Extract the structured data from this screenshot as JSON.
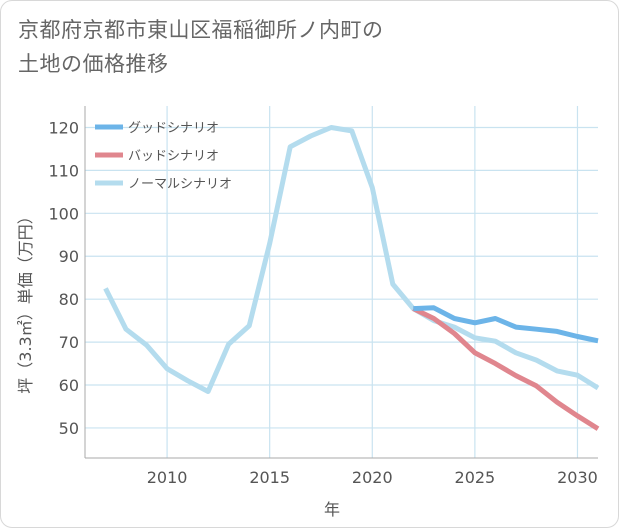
{
  "chart_data": {
    "type": "line",
    "title_lines": [
      "京都府京都市東山区福稲御所ノ内町の",
      "土地の価格推移"
    ],
    "xlabel": "年",
    "ylabel": "坪（3.3㎡）単価（万円）",
    "xlim": [
      2006,
      2031
    ],
    "ylim": [
      43,
      125
    ],
    "xticks": [
      2010,
      2015,
      2020,
      2025,
      2030
    ],
    "yticks": [
      50,
      60,
      70,
      80,
      90,
      100,
      110,
      120
    ],
    "grid": true,
    "legend_position": "top-left",
    "series": [
      {
        "name": "グッドシナリオ",
        "color": "#6cb4e8",
        "points": [
          [
            2022,
            77.8
          ],
          [
            2023,
            78
          ],
          [
            2024,
            75.5
          ],
          [
            2025,
            74.5
          ],
          [
            2026,
            75.5
          ],
          [
            2027,
            73.5
          ],
          [
            2028,
            73
          ],
          [
            2029,
            72.5
          ],
          [
            2030,
            71.3
          ],
          [
            2031,
            70.3
          ]
        ]
      },
      {
        "name": "バッドシナリオ",
        "color": "#e0868e",
        "points": [
          [
            2022,
            77.8
          ],
          [
            2023,
            75.5
          ],
          [
            2024,
            72
          ],
          [
            2025,
            67.5
          ],
          [
            2026,
            65
          ],
          [
            2027,
            62.2
          ],
          [
            2028,
            59.8
          ],
          [
            2029,
            56
          ],
          [
            2030,
            52.8
          ],
          [
            2031,
            49.8
          ]
        ]
      },
      {
        "name": "ノーマルシナリオ",
        "color": "#b4dcee",
        "points": [
          [
            2007,
            82.5
          ],
          [
            2008,
            73
          ],
          [
            2009,
            69.3
          ],
          [
            2010,
            63.8
          ],
          [
            2011,
            61
          ],
          [
            2012,
            58.5
          ],
          [
            2013,
            69.5
          ],
          [
            2014,
            73.8
          ],
          [
            2015,
            93
          ],
          [
            2016,
            115.5
          ],
          [
            2017,
            118
          ],
          [
            2018,
            120
          ],
          [
            2019,
            119.2
          ],
          [
            2020,
            106
          ],
          [
            2021,
            83.5
          ],
          [
            2022,
            77.8
          ],
          [
            2023,
            75
          ],
          [
            2024,
            73.5
          ],
          [
            2025,
            71
          ],
          [
            2026,
            70.2
          ],
          [
            2027,
            67.5
          ],
          [
            2028,
            65.8
          ],
          [
            2029,
            63.3
          ],
          [
            2030,
            62.3
          ],
          [
            2031,
            59.3
          ]
        ]
      }
    ]
  }
}
